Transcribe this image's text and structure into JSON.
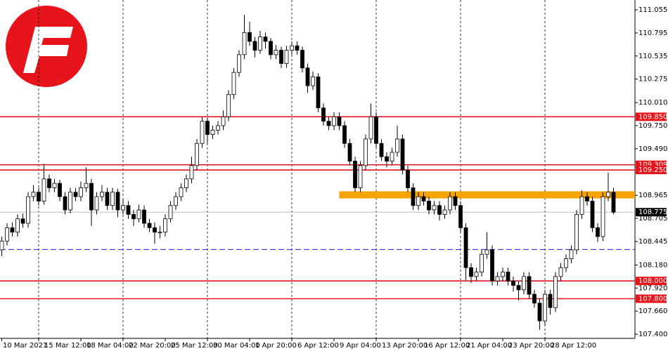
{
  "chart_data": {
    "type": "candlestick",
    "ylim": [
      107.353,
      111.166
    ],
    "yticks": [
      111.055,
      110.795,
      110.535,
      110.275,
      {
        "value": 110.01,
        "label": "110.010"
      },
      {
        "value": 109.75,
        "label": "109.750"
      },
      {
        "value": 109.49,
        "label": "109.490"
      },
      108.965,
      108.705,
      108.445,
      {
        "value": 108.18,
        "label": "108.180"
      },
      {
        "value": 107.92,
        "label": "107.920"
      },
      {
        "value": 107.66,
        "label": "107.660"
      },
      {
        "value": 107.4,
        "label": "107.400"
      }
    ],
    "grid": true,
    "up_color": "#ffffff",
    "down_color": "#000000",
    "categories": [
      "10 Mar 2021",
      null,
      null,
      null,
      null,
      null,
      null,
      "15 Mar 12:00",
      null,
      null,
      null,
      null,
      null,
      null,
      null,
      "18 Mar 04:00",
      null,
      null,
      null,
      null,
      null,
      null,
      null,
      "22 Mar 20:00",
      null,
      null,
      null,
      null,
      null,
      null,
      null,
      "25 Mar 12:00",
      null,
      null,
      null,
      null,
      null,
      null,
      null,
      "30 Mar 04:00",
      null,
      null,
      null,
      null,
      null,
      null,
      null,
      "1 Apr 20:00",
      null,
      null,
      null,
      null,
      null,
      null,
      null,
      "6 Apr 12:00",
      null,
      null,
      null,
      null,
      null,
      null,
      null,
      "9 Apr 04:00",
      null,
      null,
      null,
      null,
      null,
      null,
      null,
      "13 Apr 20:00",
      null,
      null,
      null,
      null,
      null,
      null,
      null,
      "16 Apr 12:00",
      null,
      null,
      null,
      null,
      null,
      null,
      null,
      "21 Apr 04:00",
      null,
      null,
      null,
      null,
      null,
      null,
      null,
      "23 Apr 20:00",
      null,
      null,
      null,
      null,
      null,
      null,
      null,
      "28 Apr 12:00",
      null,
      null,
      null,
      null,
      null,
      null,
      null,
      null,
      null,
      null,
      null,
      null,
      null
    ],
    "candles": [
      [
        108.35,
        108.5,
        108.28,
        108.45
      ],
      [
        108.45,
        108.65,
        108.4,
        108.6
      ],
      [
        108.6,
        108.66,
        108.5,
        108.55
      ],
      [
        108.55,
        108.75,
        108.5,
        108.7
      ],
      [
        108.7,
        108.76,
        108.6,
        108.65
      ],
      [
        108.65,
        109,
        108.6,
        108.95
      ],
      [
        108.95,
        109.08,
        108.9,
        109
      ],
      [
        109,
        109.05,
        108.85,
        108.9
      ],
      [
        108.9,
        109.32,
        108.86,
        109.15
      ],
      [
        109.15,
        109.2,
        109,
        109.05
      ],
      [
        109.05,
        109.15,
        109,
        109.1
      ],
      [
        109.1,
        109.14,
        108.9,
        108.95
      ],
      [
        108.95,
        109,
        108.75,
        108.8
      ],
      [
        108.8,
        109.05,
        108.76,
        109
      ],
      [
        109,
        109.05,
        108.9,
        108.95
      ],
      [
        108.95,
        109.12,
        108.9,
        109.05
      ],
      [
        109.05,
        109.28,
        109,
        109.1
      ],
      [
        109.1,
        109.15,
        108.62,
        108.8
      ],
      [
        108.8,
        109,
        108.75,
        108.95
      ],
      [
        108.95,
        109.08,
        108.9,
        109
      ],
      [
        109,
        109.05,
        108.8,
        108.85
      ],
      [
        108.85,
        109.05,
        108.8,
        109
      ],
      [
        109,
        109.04,
        108.72,
        108.8
      ],
      [
        108.8,
        108.92,
        108.75,
        108.85
      ],
      [
        108.85,
        108.9,
        108.7,
        108.75
      ],
      [
        108.75,
        108.8,
        108.62,
        108.7
      ],
      [
        108.7,
        108.86,
        108.66,
        108.8
      ],
      [
        108.8,
        108.85,
        108.6,
        108.65
      ],
      [
        108.65,
        108.7,
        108.55,
        108.6
      ],
      [
        108.6,
        108.66,
        108.42,
        108.55
      ],
      [
        108.55,
        108.62,
        108.48,
        108.55
      ],
      [
        108.55,
        108.75,
        108.5,
        108.7
      ],
      [
        108.7,
        108.9,
        108.66,
        108.85
      ],
      [
        108.85,
        109,
        108.8,
        108.95
      ],
      [
        108.95,
        109.1,
        108.9,
        109.05
      ],
      [
        109.05,
        109.2,
        109,
        109.15
      ],
      [
        109.15,
        109.4,
        109.1,
        109.3
      ],
      [
        109.3,
        109.6,
        109.25,
        109.55
      ],
      [
        109.55,
        109.85,
        109.5,
        109.8
      ],
      [
        109.8,
        109.84,
        109.55,
        109.65
      ],
      [
        109.65,
        109.75,
        109.6,
        109.7
      ],
      [
        109.7,
        109.8,
        109.65,
        109.75
      ],
      [
        109.75,
        109.92,
        109.7,
        109.85
      ],
      [
        109.85,
        110.15,
        109.8,
        110.1
      ],
      [
        110.1,
        110.4,
        110.05,
        110.35
      ],
      [
        110.35,
        110.6,
        110.3,
        110.55
      ],
      [
        110.55,
        111,
        110.5,
        110.8
      ],
      [
        110.8,
        110.92,
        110.65,
        110.7
      ],
      [
        110.7,
        110.75,
        110.52,
        110.6
      ],
      [
        110.6,
        110.82,
        110.56,
        110.75
      ],
      [
        110.75,
        110.8,
        110.62,
        110.7
      ],
      [
        110.7,
        110.74,
        110.5,
        110.55
      ],
      [
        110.55,
        110.66,
        110.5,
        110.6
      ],
      [
        110.6,
        110.64,
        110.4,
        110.45
      ],
      [
        110.45,
        110.65,
        110.4,
        110.6
      ],
      [
        110.6,
        110.7,
        110.55,
        110.65
      ],
      [
        110.65,
        110.7,
        110.55,
        110.6
      ],
      [
        110.6,
        110.64,
        110.35,
        110.4
      ],
      [
        110.4,
        110.45,
        110.12,
        110.2
      ],
      [
        110.2,
        110.36,
        110.15,
        110.3
      ],
      [
        110.3,
        110.34,
        109.9,
        109.95
      ],
      [
        109.95,
        110,
        109.75,
        109.8
      ],
      [
        109.8,
        109.85,
        109.7,
        109.75
      ],
      [
        109.75,
        109.9,
        109.7,
        109.85
      ],
      [
        109.85,
        109.9,
        109.7,
        109.75
      ],
      [
        109.75,
        109.8,
        109.5,
        109.55
      ],
      [
        109.55,
        109.6,
        109.3,
        109.35
      ],
      [
        109.35,
        109.4,
        109,
        109.05
      ],
      [
        109.05,
        109.35,
        109,
        109.3
      ],
      [
        109.3,
        109.65,
        109.25,
        109.6
      ],
      [
        109.6,
        110,
        109.55,
        109.85
      ],
      [
        109.85,
        109.9,
        109.5,
        109.55
      ],
      [
        109.55,
        109.6,
        109.35,
        109.4
      ],
      [
        109.4,
        109.45,
        109.28,
        109.35
      ],
      [
        109.35,
        109.5,
        109.3,
        109.45
      ],
      [
        109.45,
        109.75,
        109.4,
        109.6
      ],
      [
        109.6,
        109.65,
        109.2,
        109.25
      ],
      [
        109.25,
        109.3,
        109,
        109.05
      ],
      [
        109.05,
        109.1,
        108.8,
        108.85
      ],
      [
        108.85,
        109,
        108.8,
        108.95
      ],
      [
        108.95,
        109,
        108.85,
        108.9
      ],
      [
        108.9,
        108.95,
        108.75,
        108.8
      ],
      [
        108.8,
        108.9,
        108.75,
        108.85
      ],
      [
        108.85,
        108.9,
        108.68,
        108.75
      ],
      [
        108.75,
        108.85,
        108.7,
        108.8
      ],
      [
        108.8,
        109,
        108.75,
        108.95
      ],
      [
        108.95,
        109,
        108.8,
        108.85
      ],
      [
        108.85,
        108.9,
        108.55,
        108.6
      ],
      [
        108.6,
        108.65,
        108,
        108.15
      ],
      [
        108.15,
        108.2,
        107.98,
        108.05
      ],
      [
        108.05,
        108.15,
        108,
        108.1
      ],
      [
        108.1,
        108.35,
        108.05,
        108.3
      ],
      [
        108.3,
        108.55,
        108.25,
        108.35
      ],
      [
        108.35,
        108.4,
        107.95,
        108
      ],
      [
        108,
        108.1,
        107.95,
        108.05
      ],
      [
        108.05,
        108.15,
        108,
        108.1
      ],
      [
        108.1,
        108.15,
        107.95,
        108
      ],
      [
        108,
        108.05,
        107.88,
        107.95
      ],
      [
        107.95,
        108,
        107.78,
        107.9
      ],
      [
        107.9,
        108.1,
        107.85,
        108.05
      ],
      [
        108.05,
        108.1,
        107.8,
        107.85
      ],
      [
        107.85,
        107.9,
        107.7,
        107.75
      ],
      [
        107.75,
        107.8,
        107.45,
        107.55
      ],
      [
        107.55,
        107.9,
        107.5,
        107.85
      ],
      [
        107.85,
        107.9,
        107.62,
        107.7
      ],
      [
        107.7,
        108.1,
        107.65,
        108.05
      ],
      [
        108.05,
        108.2,
        108,
        108.15
      ],
      [
        108.15,
        108.3,
        108.1,
        108.25
      ],
      [
        108.25,
        108.4,
        108.2,
        108.35
      ],
      [
        108.35,
        108.8,
        108.3,
        108.75
      ],
      [
        108.75,
        109.02,
        108.7,
        108.95
      ],
      [
        108.95,
        109,
        108.85,
        108.9
      ],
      [
        108.9,
        108.95,
        108.55,
        108.6
      ],
      [
        108.6,
        108.65,
        108.44,
        108.5
      ],
      [
        108.5,
        109,
        108.45,
        108.95
      ],
      [
        108.95,
        109.22,
        108.9,
        109
      ],
      [
        109,
        109.05,
        108.75,
        108.775
      ]
    ],
    "levels": [
      {
        "value": 109.85,
        "label": "109.850",
        "color": "#e8141b"
      },
      {
        "value": 109.309,
        "label": "109.309",
        "color": "#e8141b"
      },
      {
        "value": 109.25,
        "label": "109.250",
        "color": "#e8141b"
      },
      {
        "value": 108.0,
        "label": "108.000",
        "color": "#e8141b"
      },
      {
        "value": 107.8,
        "label": "107.800",
        "color": "#e8141b"
      }
    ],
    "zone": {
      "low": 108.93,
      "high": 109.01,
      "start": 64,
      "color": "#f7a400"
    },
    "support_line": {
      "value": 108.355,
      "color": "#1c1cd8"
    },
    "current_price": {
      "value": 108.775,
      "label": "108.775",
      "color": "#000000"
    }
  }
}
